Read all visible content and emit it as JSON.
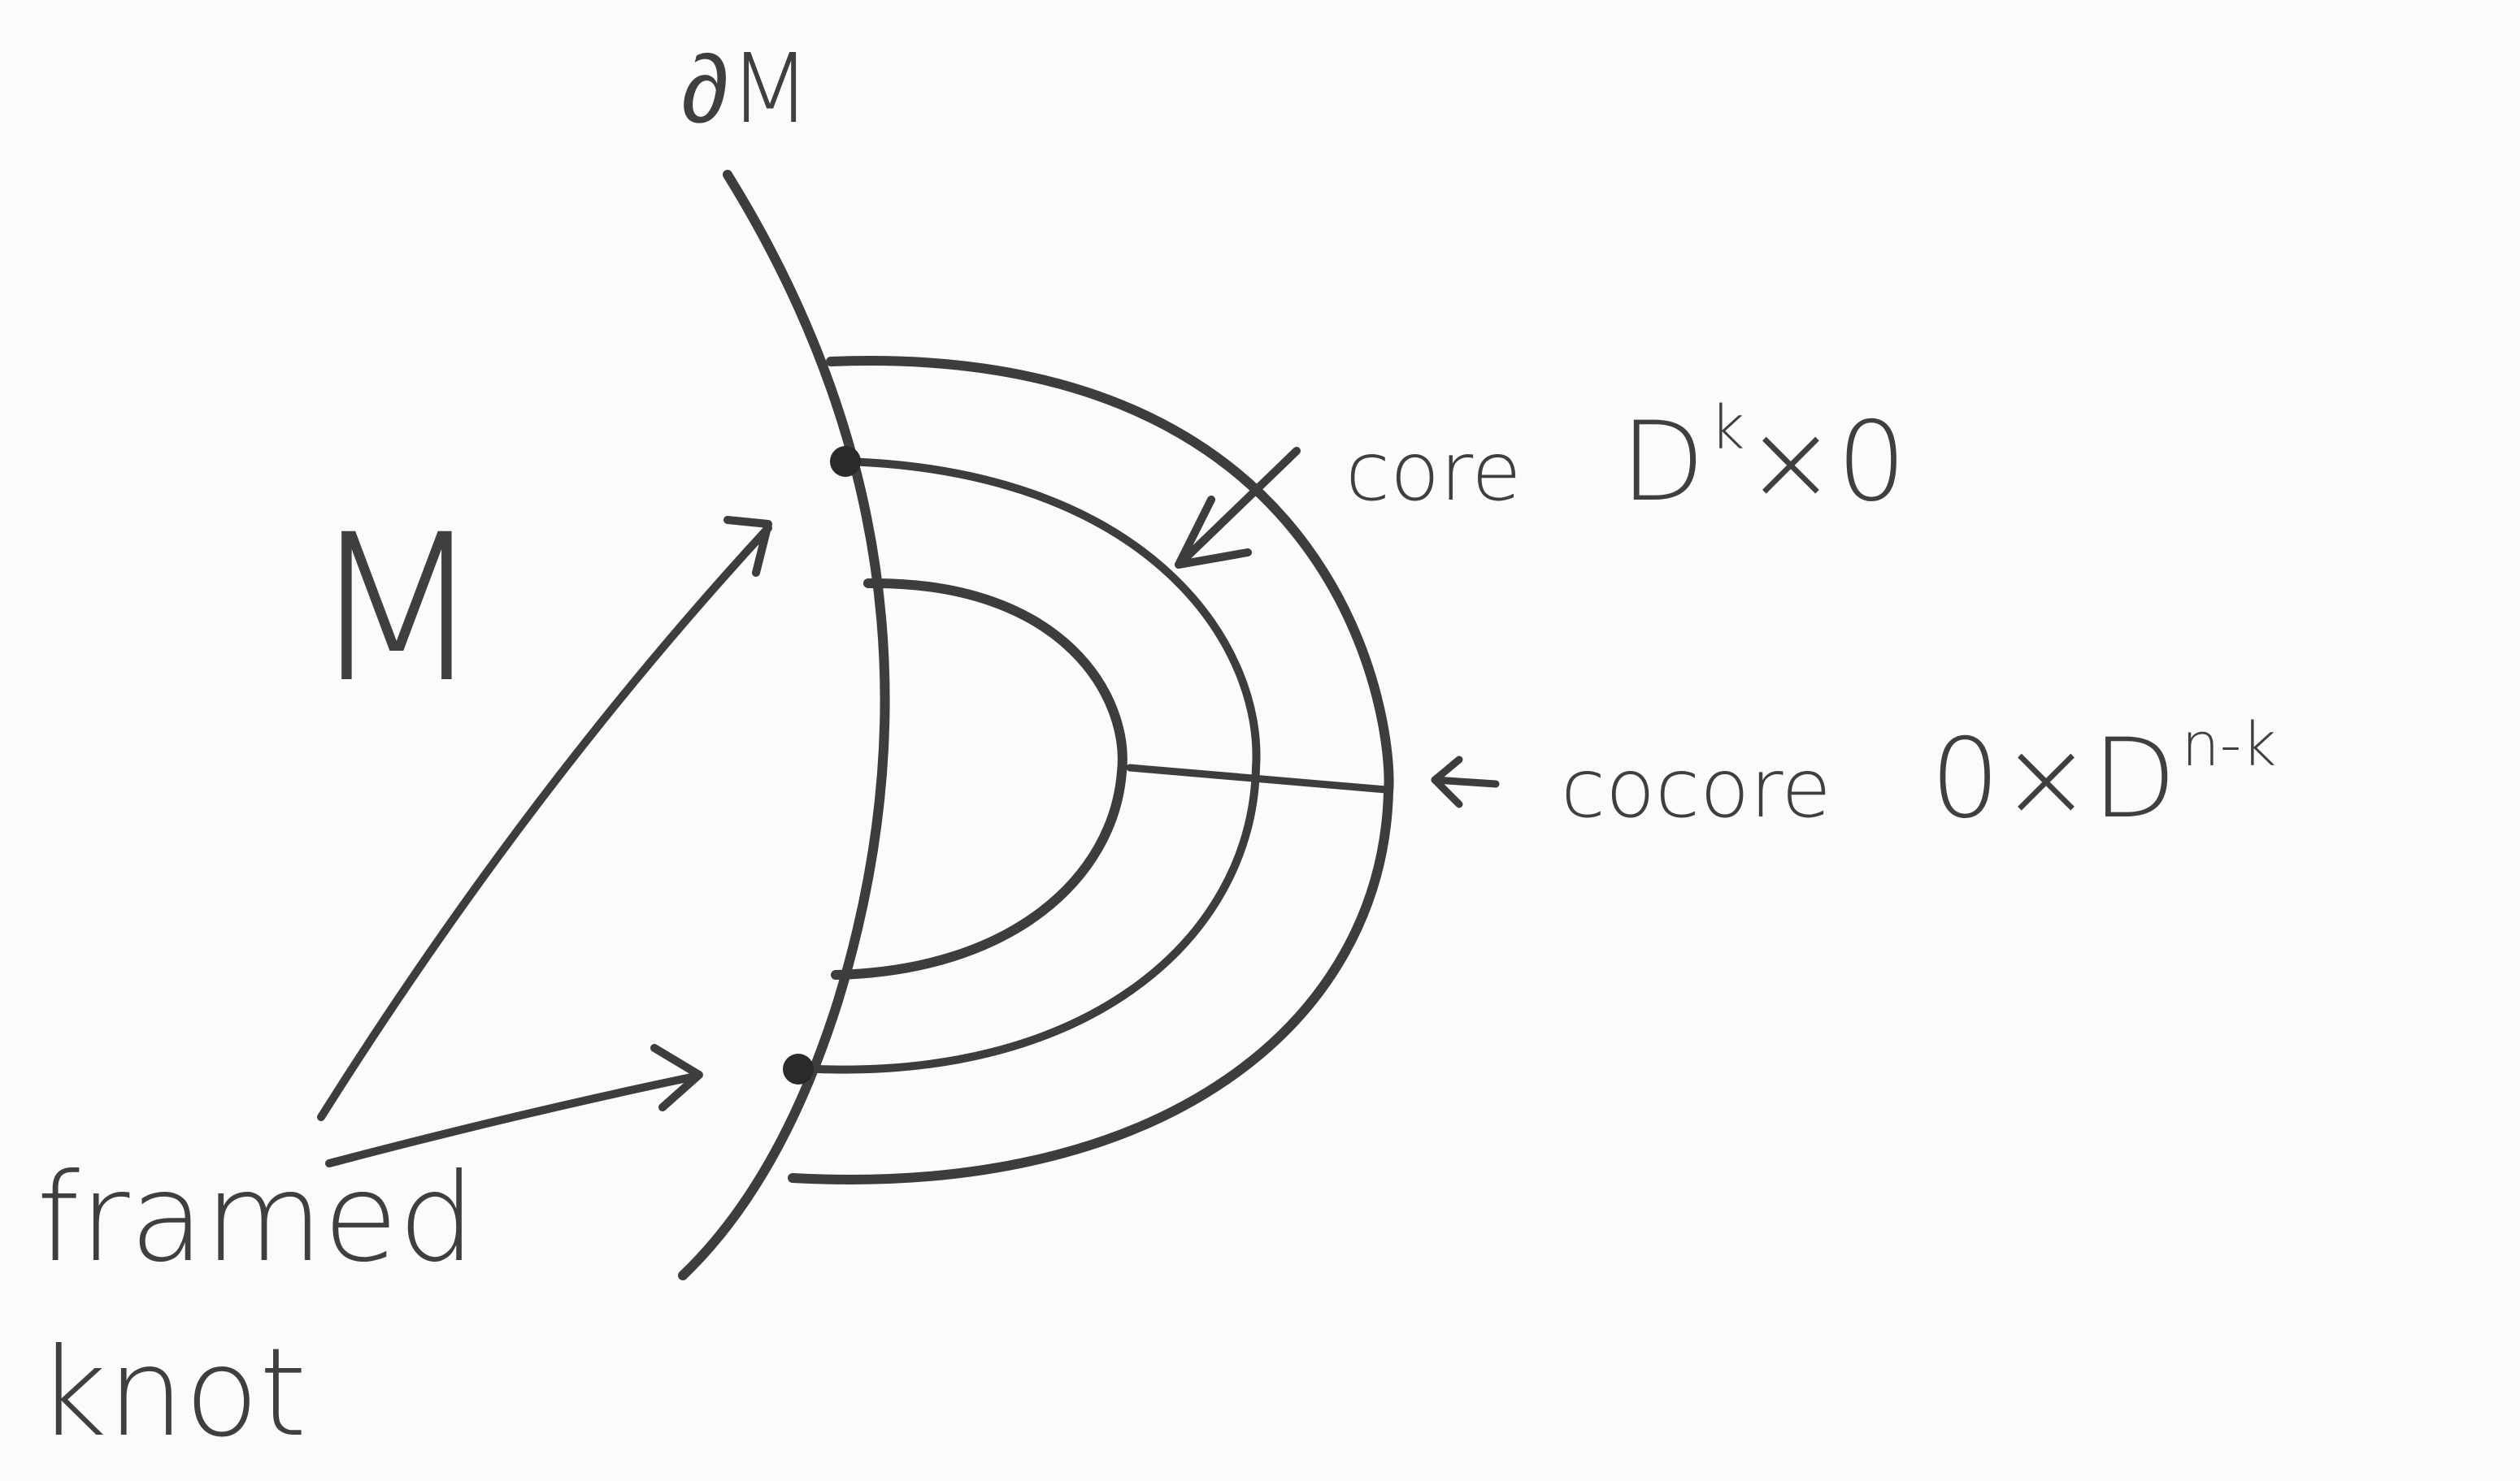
{
  "labels": {
    "boundary": "∂M",
    "manifold": "M",
    "core_word": "core",
    "core_formula_base": "D",
    "core_formula_sup": "k",
    "core_formula_tail": "×0",
    "cocore_word": "cocore",
    "cocore_formula_head": "0×D",
    "cocore_formula_sup": "n-k",
    "framed_knot_line1": "framed",
    "framed_knot_line2": "knot"
  }
}
